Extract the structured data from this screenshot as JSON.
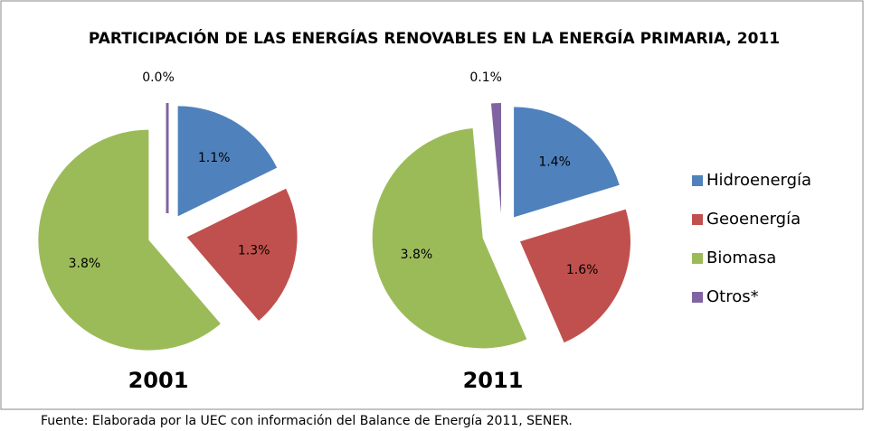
{
  "title": "PARTICIPACIÓN DE LAS ENERGÍAS RENOVABLES EN LA ENERGÍA PRIMARIA, 2011",
  "source": "Fuente: Elaborada por la UEC con información del Balance de Energía 2011, SENER.",
  "chart_data": [
    {
      "type": "pie",
      "title": "2001",
      "categories": [
        "Hidroenergía",
        "Geoenergía",
        "Biomasa",
        "Otros*"
      ],
      "values": [
        1.1,
        1.3,
        3.8,
        0.0
      ],
      "value_labels": [
        "1.1%",
        "1.3%",
        "3.8%",
        "0.0%"
      ],
      "colors": [
        "#4f81bd",
        "#c0504d",
        "#9bbb59",
        "#8064a2"
      ]
    },
    {
      "type": "pie",
      "title": "2011",
      "categories": [
        "Hidroenergía",
        "Geoenergía",
        "Biomasa",
        "Otros*"
      ],
      "values": [
        1.4,
        1.6,
        3.8,
        0.1
      ],
      "value_labels": [
        "1.4%",
        "1.6%",
        "3.8%",
        "0.1%"
      ],
      "colors": [
        "#4f81bd",
        "#c0504d",
        "#9bbb59",
        "#8064a2"
      ]
    }
  ]
}
